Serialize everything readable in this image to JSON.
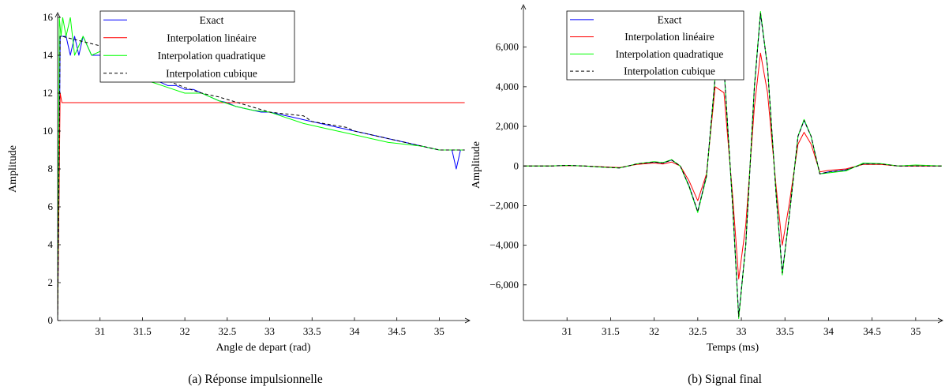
{
  "colors": {
    "exact": "#0000ff",
    "lin": "#ff0000",
    "quad": "#00ff00",
    "cubic": "#000000"
  },
  "chart_data": [
    {
      "type": "line",
      "caption": "(a) Réponse impulsionnelle",
      "xlabel": "Angle de depart (rad)",
      "ylabel": "Amplitude",
      "xlim": [
        30.5,
        35.35
      ],
      "ylim": [
        0,
        16
      ],
      "xticks": [
        31,
        31.5,
        32,
        32.5,
        33,
        33.5,
        34,
        34.5,
        35
      ],
      "xtick_labels": [
        "31",
        "31.5",
        "32",
        "32.5",
        "33",
        "33.5",
        "34",
        "34.5",
        "35"
      ],
      "yticks": [
        0,
        2,
        4,
        6,
        8,
        10,
        12,
        14,
        16
      ],
      "ytick_labels": [
        "0",
        "2",
        "4",
        "6",
        "8",
        "10",
        "12",
        "14",
        "16"
      ],
      "legend_position": "top-center",
      "series": [
        {
          "name": "Exact",
          "color_key": "exact",
          "dashed": false,
          "x": [
            30.5,
            30.52,
            30.53,
            30.6,
            30.65,
            30.7,
            30.75,
            30.8,
            30.9,
            31.0,
            31.1,
            31.2,
            31.3,
            31.4,
            31.5,
            31.6,
            31.7,
            31.8,
            31.9,
            32.0,
            32.1,
            32.2,
            32.3,
            32.4,
            32.5,
            32.6,
            32.7,
            32.8,
            32.9,
            33.0,
            33.2,
            33.4,
            33.6,
            33.8,
            34.0,
            34.2,
            34.4,
            34.6,
            34.8,
            35.0,
            35.15,
            35.2,
            35.25,
            35.3
          ],
          "y": [
            0,
            8,
            15,
            15,
            14,
            15,
            14,
            15,
            14,
            14,
            14,
            13.7,
            13.3,
            13,
            13,
            12.8,
            12.6,
            12.4,
            12.4,
            12.2,
            12.2,
            12.0,
            11.8,
            11.6,
            11.5,
            11.3,
            11.2,
            11.1,
            11.0,
            11.0,
            10.8,
            10.6,
            10.4,
            10.2,
            10.0,
            9.8,
            9.6,
            9.4,
            9.2,
            9.0,
            9.0,
            8.0,
            9.0,
            9.0
          ]
        },
        {
          "name": "Interpolation linéaire",
          "color_key": "lin",
          "dashed": false,
          "x": [
            30.5,
            30.53,
            30.55,
            30.6,
            30.65,
            30.7,
            31.0,
            31.5,
            32.0,
            32.5,
            33.0,
            33.5,
            34.0,
            34.5,
            35.0,
            35.3
          ],
          "y": [
            0,
            12,
            11.5,
            11.5,
            11.5,
            11.5,
            11.5,
            11.5,
            11.5,
            11.5,
            11.5,
            11.5,
            11.5,
            11.5,
            11.5,
            11.5
          ]
        },
        {
          "name": "Interpolation quadratique",
          "color_key": "quad",
          "dashed": false,
          "x": [
            30.5,
            30.52,
            30.54,
            30.56,
            30.6,
            30.65,
            30.7,
            30.8,
            30.9,
            31.0,
            31.2,
            31.4,
            31.6,
            31.8,
            32.0,
            32.2,
            32.4,
            32.6,
            32.8,
            33.0,
            33.2,
            33.4,
            33.6,
            33.8,
            34.0,
            34.2,
            34.4,
            34.6,
            34.8,
            35.0,
            35.2,
            35.3
          ],
          "y": [
            0,
            16,
            15,
            16,
            15,
            16,
            14,
            15,
            14,
            14.2,
            13.5,
            13.0,
            12.6,
            12.3,
            12.0,
            12.0,
            11.6,
            11.3,
            11.1,
            11.0,
            10.7,
            10.4,
            10.2,
            10.0,
            9.8,
            9.6,
            9.4,
            9.3,
            9.2,
            9.0,
            9.0,
            9.0
          ]
        },
        {
          "name": "Interpolation cubique",
          "color_key": "cubic",
          "dashed": true,
          "x": [
            30.5,
            30.53,
            30.55,
            31.0,
            31.5,
            31.6,
            32.0,
            32.2,
            32.4,
            33.0,
            33.4,
            33.5,
            33.9,
            34.0,
            34.5,
            35.0,
            35.3
          ],
          "y": [
            0,
            15,
            15,
            14.5,
            13.5,
            13,
            12.3,
            12.0,
            11.8,
            11.0,
            10.8,
            10.5,
            10.2,
            10.0,
            9.5,
            9.0,
            9.0
          ]
        }
      ]
    },
    {
      "type": "line",
      "caption": "(b) Signal final",
      "xlabel": "Temps (ms)",
      "ylabel": "Amplitude",
      "xlim": [
        30.5,
        35.3
      ],
      "ylim": [
        -7800,
        7900
      ],
      "xticks": [
        31,
        31.5,
        32,
        32.5,
        33,
        33.5,
        34,
        34.5,
        35
      ],
      "xtick_labels": [
        "31",
        "31.5",
        "32",
        "32.5",
        "33",
        "33.5",
        "34",
        "34.5",
        "35"
      ],
      "yticks": [
        -6000,
        -4000,
        -2000,
        0,
        2000,
        4000,
        6000
      ],
      "ytick_labels": [
        "−6,000",
        "−4,000",
        "−2,000",
        "0",
        "2,000",
        "4,000",
        "6,000"
      ],
      "legend_position": "top-center",
      "series": [
        {
          "name": "Exact",
          "color_key": "exact",
          "dashed": false,
          "x": [
            30.5,
            30.8,
            31.0,
            31.2,
            31.4,
            31.6,
            31.7,
            31.8,
            32.0,
            32.1,
            32.2,
            32.3,
            32.4,
            32.5,
            32.6,
            32.7,
            32.8,
            32.9,
            32.97,
            33.05,
            33.15,
            33.22,
            33.3,
            33.4,
            33.47,
            33.55,
            33.65,
            33.72,
            33.8,
            33.9,
            34.0,
            34.2,
            34.4,
            34.6,
            34.8,
            35.0,
            35.3
          ],
          "y": [
            0,
            0,
            30,
            0,
            -50,
            -100,
            0,
            100,
            200,
            150,
            300,
            0,
            -1000,
            -2300,
            -500,
            4500,
            5000,
            -2000,
            -7600,
            -4000,
            4000,
            7700,
            5000,
            -1500,
            -5400,
            -2500,
            1500,
            2300,
            1500,
            -400,
            -300,
            -200,
            100,
            100,
            0,
            0,
            0
          ]
        },
        {
          "name": "Interpolation linéaire",
          "color_key": "lin",
          "dashed": false,
          "x": [
            30.5,
            30.8,
            31.0,
            31.2,
            31.4,
            31.6,
            31.7,
            31.8,
            32.0,
            32.1,
            32.2,
            32.3,
            32.4,
            32.5,
            32.6,
            32.7,
            32.8,
            32.9,
            32.97,
            33.05,
            33.15,
            33.22,
            33.3,
            33.4,
            33.47,
            33.55,
            33.65,
            33.72,
            33.8,
            33.9,
            34.0,
            34.2,
            34.4,
            34.6,
            34.8,
            35.0,
            35.3
          ],
          "y": [
            0,
            0,
            20,
            0,
            -40,
            -80,
            0,
            80,
            150,
            100,
            200,
            0,
            -750,
            -1750,
            -400,
            4000,
            3700,
            -1500,
            -5700,
            -3000,
            3000,
            5700,
            3700,
            -1100,
            -4000,
            -1900,
            1100,
            1700,
            1100,
            -300,
            -220,
            -150,
            80,
            80,
            0,
            0,
            0
          ]
        },
        {
          "name": "Interpolation quadratique",
          "color_key": "quad",
          "dashed": false,
          "x": [
            30.5,
            30.8,
            31.0,
            31.2,
            31.4,
            31.6,
            31.7,
            31.8,
            32.0,
            32.1,
            32.2,
            32.3,
            32.4,
            32.5,
            32.6,
            32.7,
            32.8,
            32.9,
            32.97,
            33.05,
            33.15,
            33.22,
            33.3,
            33.4,
            33.47,
            33.55,
            33.65,
            33.72,
            33.8,
            33.9,
            34.0,
            34.2,
            34.4,
            34.6,
            34.8,
            35.0,
            35.3
          ],
          "y": [
            0,
            0,
            30,
            0,
            -60,
            -100,
            0,
            110,
            220,
            170,
            320,
            0,
            -1050,
            -2350,
            -550,
            4500,
            5000,
            -2000,
            -7700,
            -4000,
            4050,
            7800,
            5000,
            -1500,
            -5500,
            -2500,
            1500,
            2350,
            1500,
            -400,
            -350,
            -250,
            150,
            120,
            0,
            50,
            0
          ]
        },
        {
          "name": "Interpolation cubique",
          "color_key": "cubic",
          "dashed": true,
          "x": [
            30.5,
            30.8,
            31.0,
            31.2,
            31.4,
            31.6,
            31.7,
            31.8,
            32.0,
            32.1,
            32.2,
            32.3,
            32.4,
            32.5,
            32.6,
            32.7,
            32.8,
            32.9,
            32.97,
            33.05,
            33.15,
            33.22,
            33.3,
            33.4,
            33.47,
            33.55,
            33.65,
            33.72,
            33.8,
            33.9,
            34.0,
            34.2,
            34.4,
            34.6,
            34.8,
            35.0,
            35.3
          ],
          "y": [
            0,
            0,
            30,
            0,
            -50,
            -100,
            0,
            100,
            200,
            150,
            300,
            0,
            -1000,
            -2300,
            -500,
            4500,
            5000,
            -2000,
            -7600,
            -4000,
            4000,
            7700,
            5000,
            -1500,
            -5400,
            -2500,
            1500,
            2300,
            1500,
            -400,
            -300,
            -200,
            100,
            100,
            0,
            0,
            0
          ]
        }
      ]
    }
  ]
}
